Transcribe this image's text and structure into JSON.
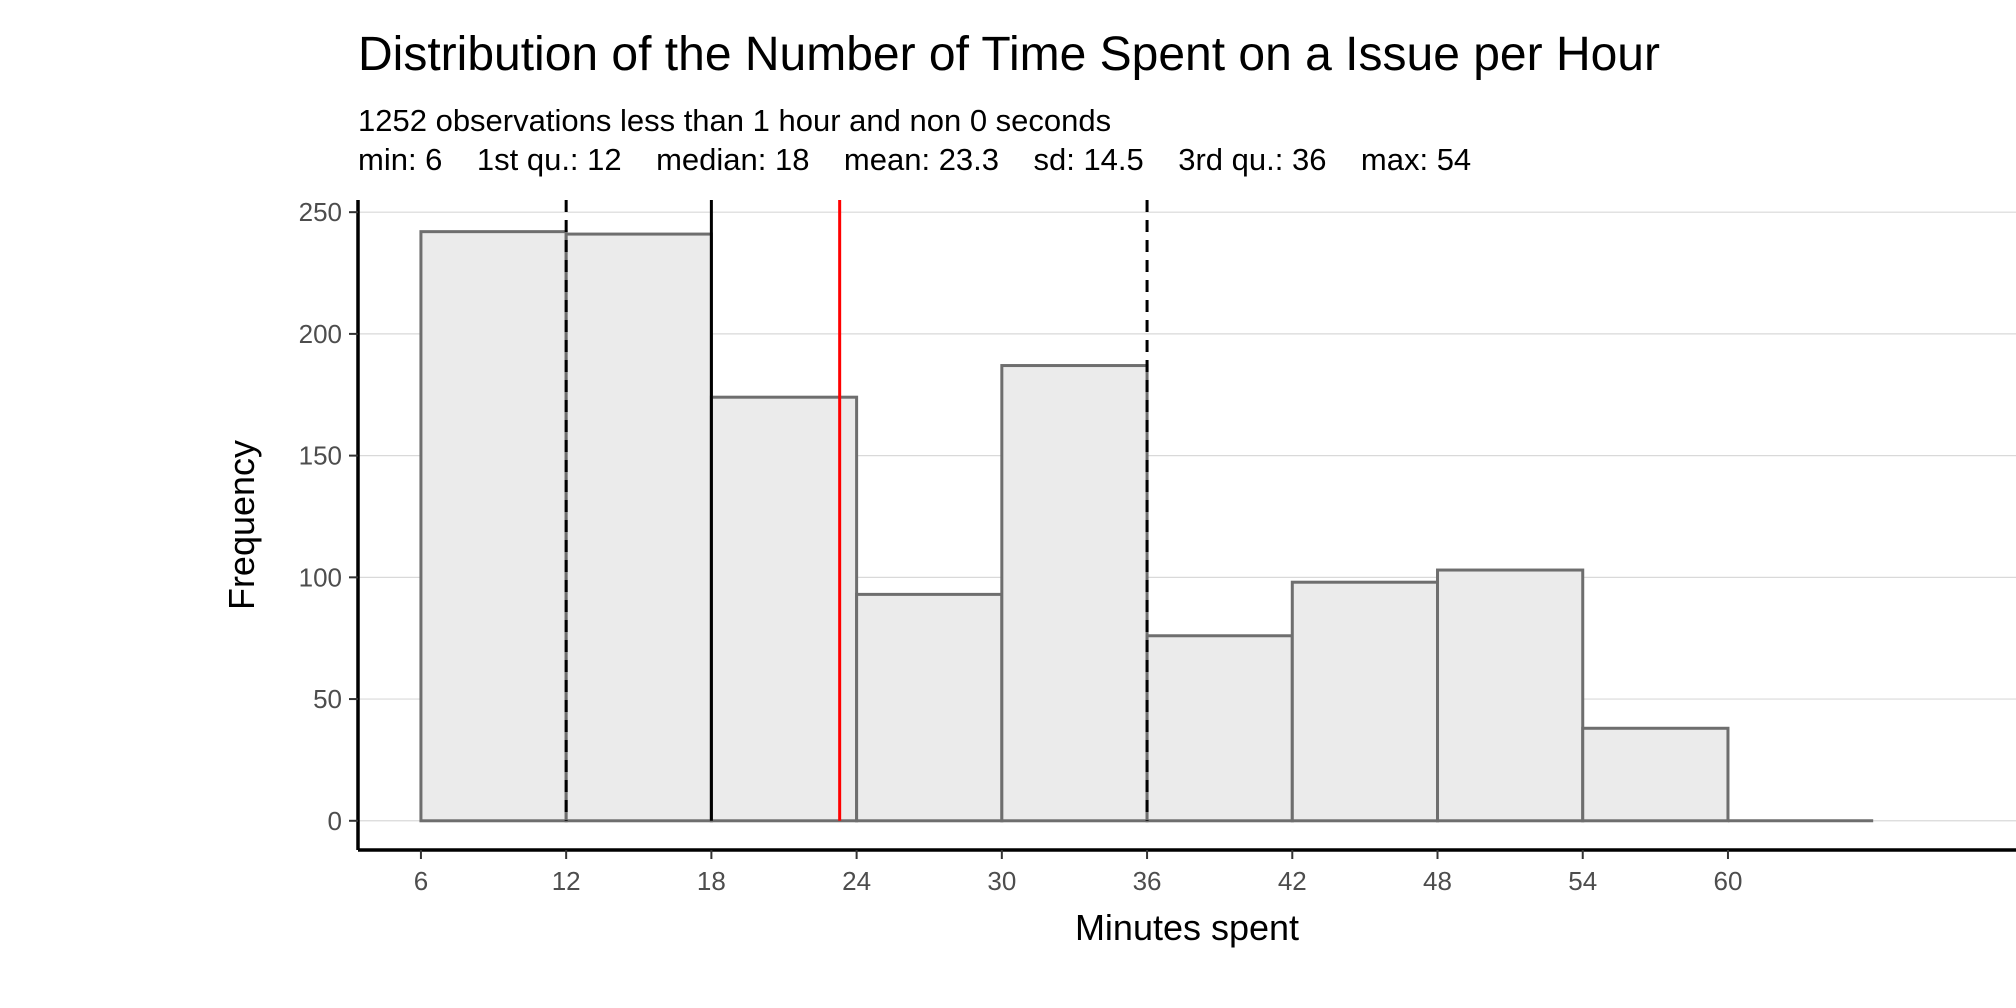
{
  "chart_data": {
    "type": "bar",
    "title": "Distribution of the Number of Time Spent on a Issue per Hour",
    "subtitle_lines": [
      "1252 observations less than 1 hour and non 0 seconds",
      "min: 6    1st qu.: 12    median: 18    mean: 23.3    sd: 14.5    3rd qu.: 36    max: 54"
    ],
    "xlabel": "Minutes spent",
    "ylabel": "Frequency",
    "bin_width": 6,
    "bins": [
      {
        "start": 6,
        "end": 12,
        "count": 242
      },
      {
        "start": 12,
        "end": 18,
        "count": 241
      },
      {
        "start": 18,
        "end": 24,
        "count": 174
      },
      {
        "start": 24,
        "end": 30,
        "count": 93
      },
      {
        "start": 30,
        "end": 36,
        "count": 187
      },
      {
        "start": 36,
        "end": 42,
        "count": 76
      },
      {
        "start": 42,
        "end": 48,
        "count": 98
      },
      {
        "start": 48,
        "end": 54,
        "count": 103
      },
      {
        "start": 54,
        "end": 60,
        "count": 38
      },
      {
        "start": 60,
        "end": 66,
        "count": 0
      }
    ],
    "x_ticks": [
      6,
      12,
      18,
      24,
      30,
      36,
      42,
      48,
      54,
      60
    ],
    "y_ticks": [
      0,
      50,
      100,
      150,
      200,
      250
    ],
    "xlim": [
      3.4,
      71.9
    ],
    "ylim": [
      -12,
      255
    ],
    "reference_lines": [
      {
        "name": "1st-quartile",
        "x": 12,
        "style": "dashed",
        "color": "#000000"
      },
      {
        "name": "median",
        "x": 18,
        "style": "solid",
        "color": "#000000"
      },
      {
        "name": "mean",
        "x": 23.3,
        "style": "solid",
        "color": "#ff0000"
      },
      {
        "name": "3rd-quartile",
        "x": 36,
        "style": "dashed",
        "color": "#000000"
      }
    ],
    "grid": "horizontal",
    "colors": {
      "bar_fill": "#ebebeb",
      "bar_stroke": "#6e6e6e",
      "grid": "#d9d9d9",
      "axis": "#000000"
    }
  }
}
